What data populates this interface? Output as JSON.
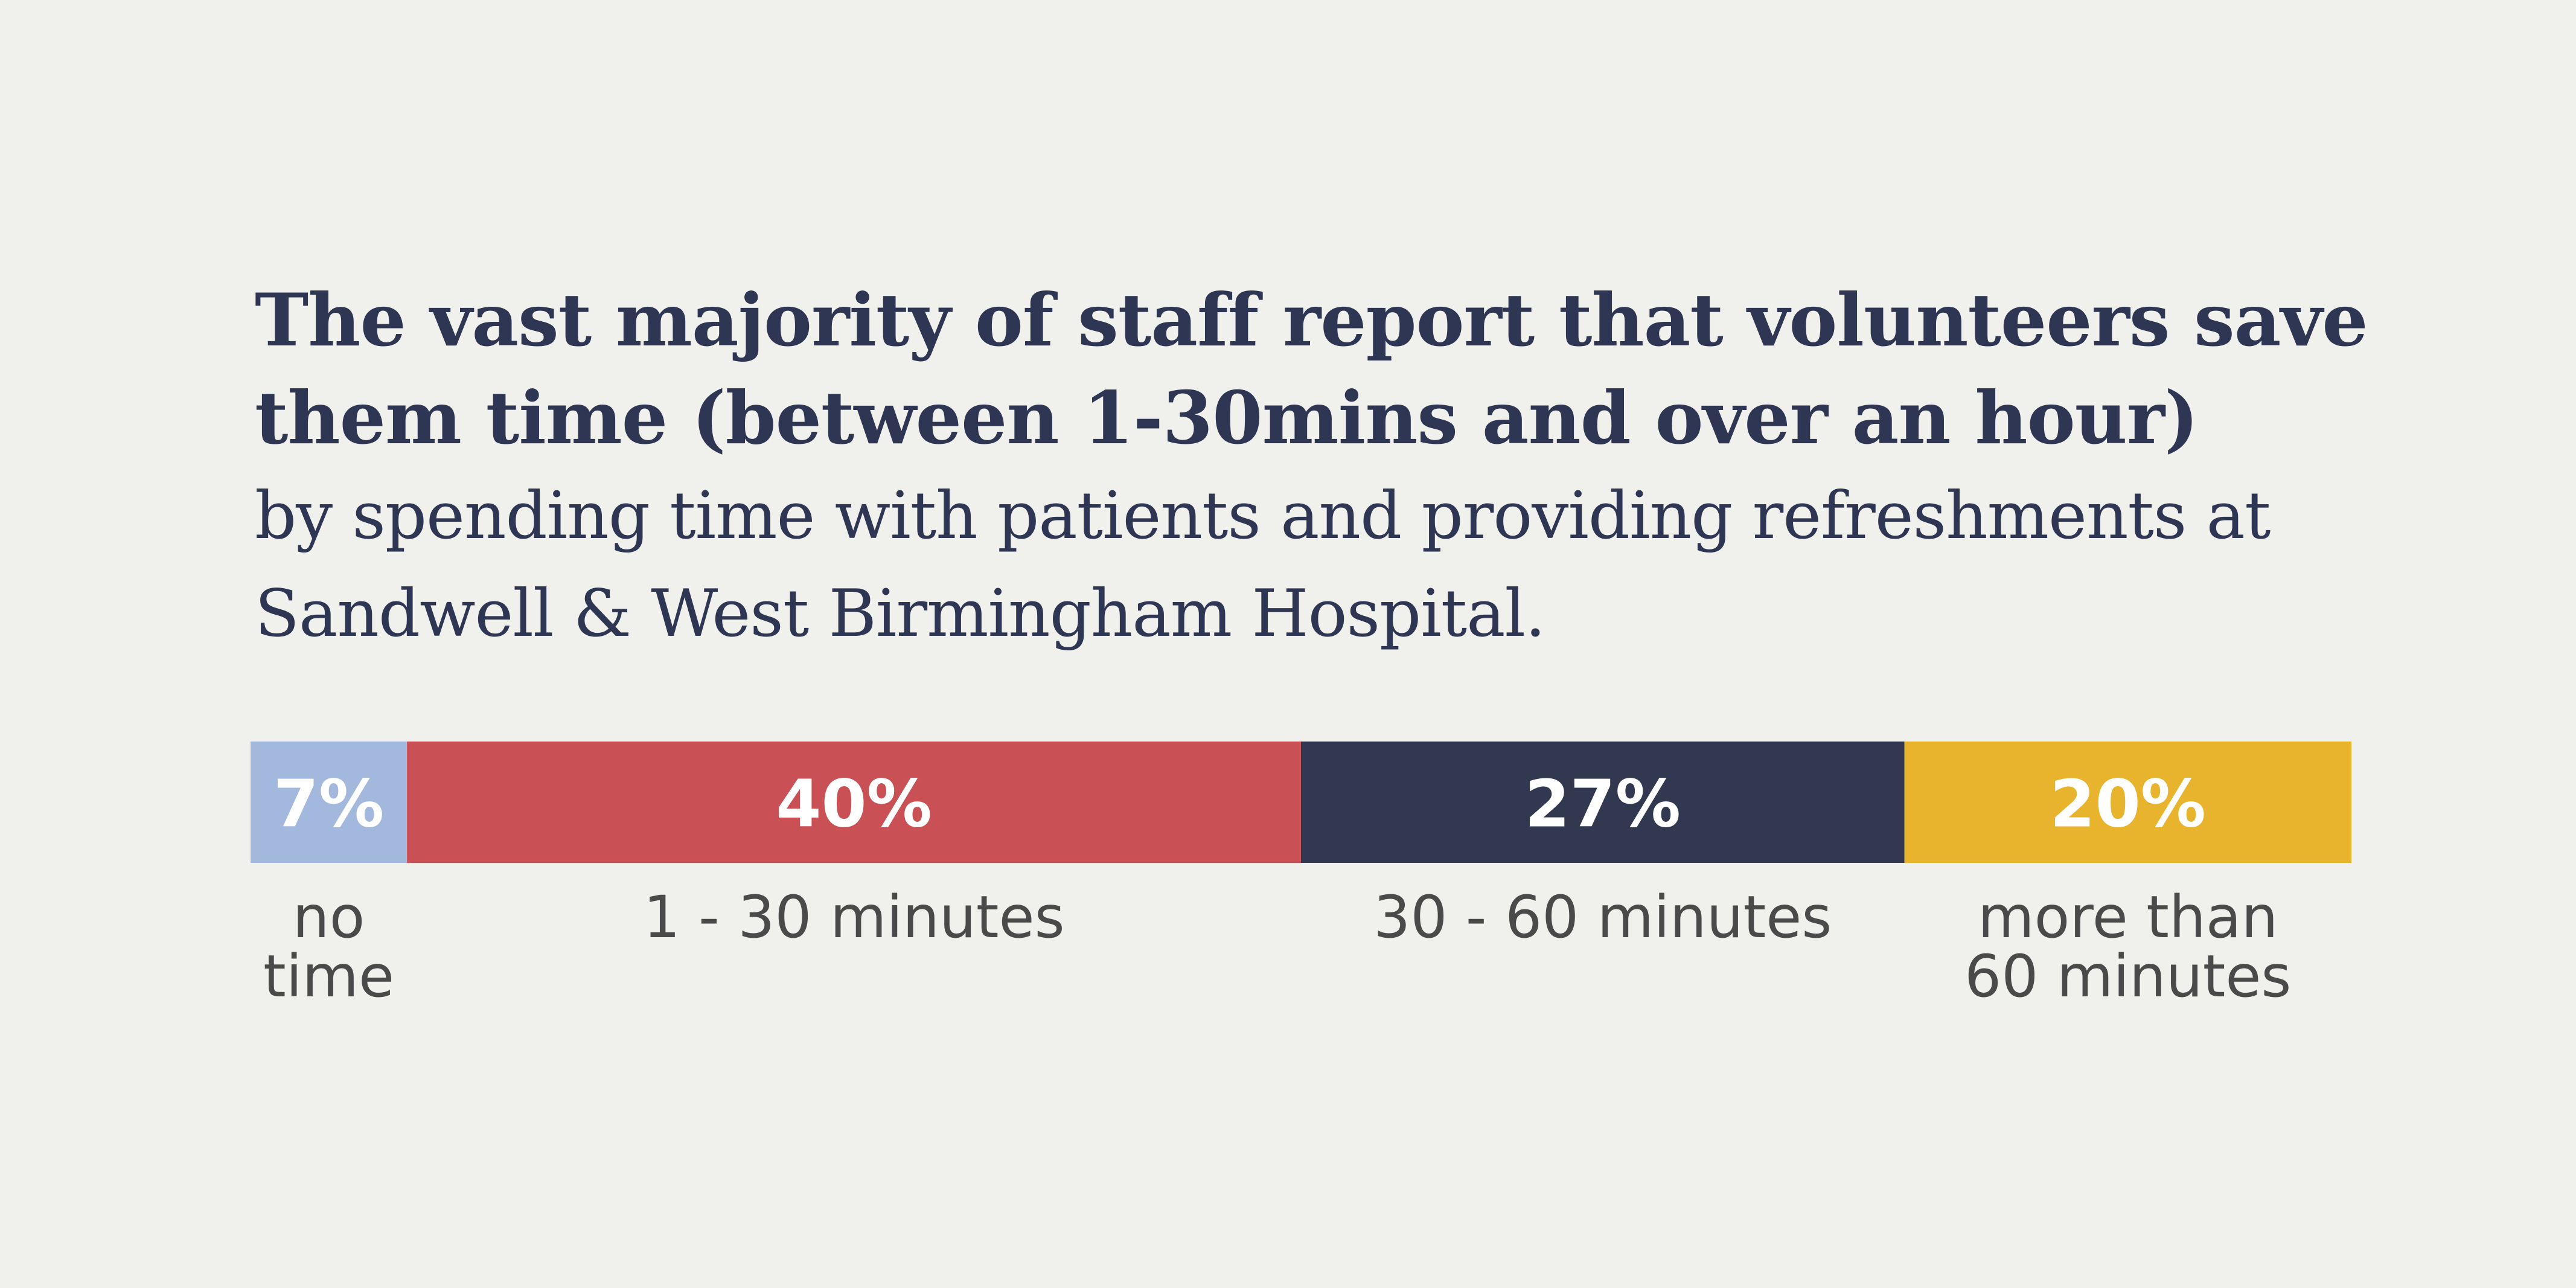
{
  "title": "The vast majority of staff report that volunteers save them time (between 1-30mins and over an hour)",
  "subtitle": "by spending time with patients and providing refreshments at Sandwell & West Birmingham Hospital.",
  "chart_data": {
    "type": "bar",
    "orientation": "horizontal-stacked",
    "categories": [
      "no time",
      "1 - 30 minutes",
      "30 - 60 minutes",
      "more than 60 minutes"
    ],
    "label_lines": [
      [
        "no",
        "time"
      ],
      [
        "1 - 30 minutes"
      ],
      [
        "30 - 60 minutes"
      ],
      [
        "more than",
        "60 minutes"
      ]
    ],
    "values": [
      7,
      40,
      27,
      20
    ],
    "value_labels": [
      "7%",
      "40%",
      "27%",
      "20%"
    ],
    "colors": [
      "#a3b8dd",
      "#c95055",
      "#323850",
      "#e8b42e"
    ],
    "value_unit": "%",
    "legend": "none",
    "grid": false
  }
}
